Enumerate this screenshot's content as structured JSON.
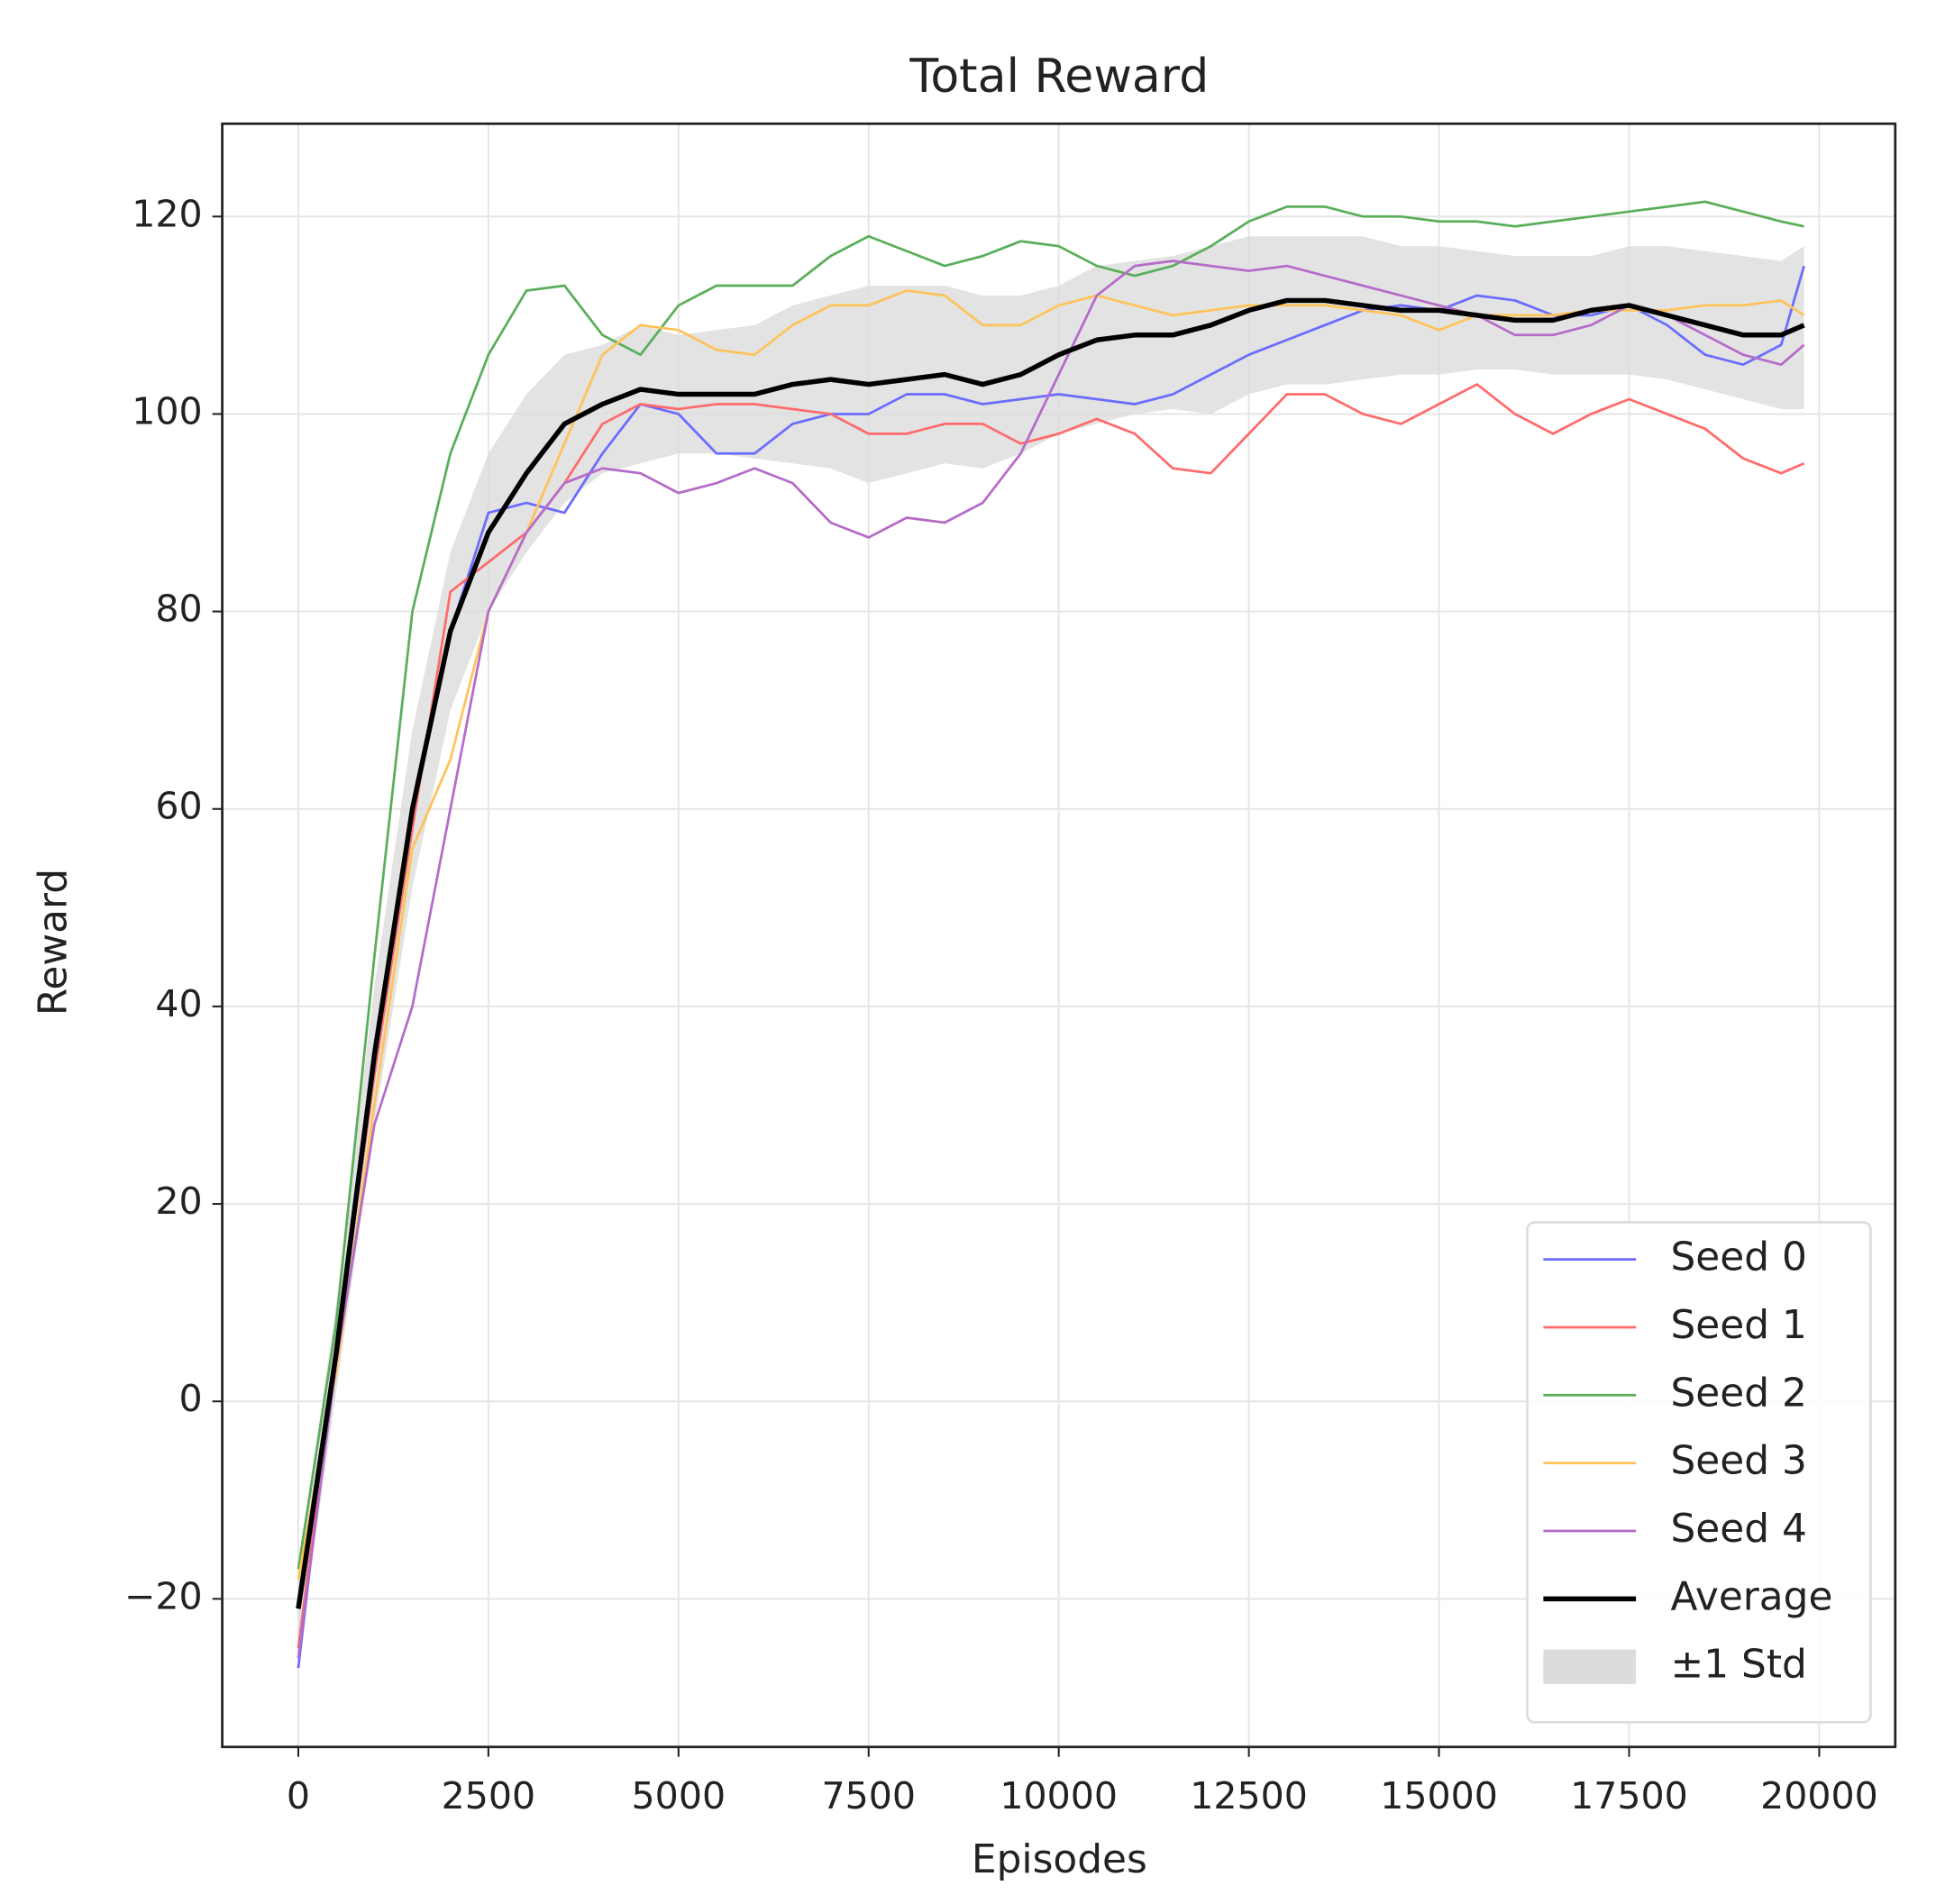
{
  "chart_data": {
    "type": "line",
    "title": "Total Reward",
    "x_label": "Episodes",
    "y_label": "Reward",
    "x": [
      0,
      500,
      1000,
      1500,
      2000,
      2500,
      3000,
      3500,
      4000,
      4500,
      5000,
      5500,
      6000,
      6500,
      7000,
      7500,
      8000,
      8500,
      9000,
      9500,
      10000,
      10500,
      11000,
      11500,
      12000,
      12500,
      13000,
      13500,
      14000,
      14500,
      15000,
      15500,
      16000,
      16500,
      17000,
      17500,
      18000,
      18500,
      19000,
      19500,
      19800
    ],
    "series": [
      {
        "name": "Seed 0",
        "color": "#6b6bff",
        "width": 2,
        "values": [
          -27,
          6,
          36,
          60,
          78,
          90,
          91,
          90,
          96,
          101,
          100,
          96,
          96,
          99,
          100,
          100,
          102,
          102,
          101,
          101.5,
          102,
          101.5,
          101,
          102,
          104,
          106,
          107.5,
          109,
          110.5,
          111,
          110.5,
          112,
          111.5,
          110,
          110,
          111,
          109,
          106,
          105,
          107,
          115
        ]
      },
      {
        "name": "Seed 1",
        "color": "#ff6b6b",
        "width": 2,
        "values": [
          -25,
          5,
          33,
          58,
          82,
          85,
          88,
          93,
          99,
          101,
          100.5,
          101,
          101,
          100.5,
          100,
          98,
          98,
          99,
          99,
          97,
          98,
          99.5,
          98,
          94.5,
          94,
          98,
          102,
          102,
          100,
          99,
          101,
          103,
          100,
          98,
          100,
          101.5,
          100,
          98.5,
          95.5,
          94,
          95
        ]
      },
      {
        "name": "Seed 2",
        "color": "#5aae5a",
        "width": 2,
        "values": [
          -17,
          8,
          45,
          80,
          96,
          106,
          112.5,
          113,
          108,
          106,
          111,
          113,
          113,
          113,
          116,
          118,
          116.5,
          115,
          116,
          117.5,
          117,
          115,
          114,
          115,
          117,
          119.5,
          121,
          121,
          120,
          120,
          119.5,
          119.5,
          119,
          119.5,
          120,
          120.5,
          121,
          121.5,
          120.5,
          119.5,
          119
        ]
      },
      {
        "name": "Seed 3",
        "color": "#ffc35a",
        "width": 2,
        "values": [
          -18,
          3,
          30,
          56,
          65,
          80,
          88,
          97,
          106,
          109,
          108.5,
          106.5,
          106,
          109,
          111,
          111,
          112.5,
          112,
          109,
          109,
          111,
          112,
          111,
          110,
          110.5,
          111,
          111,
          111,
          110.5,
          110,
          108.5,
          110,
          110,
          110,
          110.5,
          110.5,
          110.5,
          111,
          111,
          111.5,
          110
        ]
      },
      {
        "name": "Seed 4",
        "color": "#b56bc8",
        "width": 2,
        "values": [
          -26,
          4,
          28,
          40,
          60,
          80,
          88,
          93,
          94.5,
          94,
          92,
          93,
          94.5,
          93,
          89,
          87.5,
          89.5,
          89,
          91,
          96,
          104,
          112,
          115,
          115.5,
          115,
          114.5,
          115,
          114,
          113,
          112,
          111,
          110,
          108,
          108,
          109,
          111,
          110,
          108,
          106,
          105,
          107
        ]
      },
      {
        "name": "Average",
        "color": "#000000",
        "width": 4,
        "values": [
          -21,
          5,
          35,
          60,
          78,
          88,
          94,
          99,
          101,
          102.5,
          102,
          102,
          102,
          103,
          103.5,
          103,
          103.5,
          104,
          103,
          104,
          106,
          107.5,
          108,
          108,
          109,
          110.5,
          111.5,
          111.5,
          111,
          110.5,
          110.5,
          110,
          109.5,
          109.5,
          110.5,
          111,
          110,
          109,
          108,
          108,
          109
        ]
      }
    ],
    "band": {
      "name": "±1 Std",
      "color": "#dcdcdc",
      "lower": [
        -26,
        1,
        28,
        52,
        70,
        80,
        86,
        91,
        94,
        95,
        96,
        96,
        95.5,
        95,
        94.5,
        93,
        94,
        95,
        94.5,
        96,
        98,
        99,
        100,
        100.5,
        100,
        102,
        103,
        103,
        103.5,
        104,
        104,
        104.5,
        104.5,
        104,
        104,
        104,
        103.5,
        102.5,
        101.5,
        100.5,
        100.5
      ],
      "upper": [
        -17,
        10,
        42,
        68,
        86,
        96,
        102,
        106,
        107,
        109,
        108,
        108.5,
        109,
        111,
        112,
        113,
        113,
        113,
        112,
        112,
        113,
        115,
        115.5,
        116,
        117,
        118,
        118,
        118,
        118,
        117,
        117,
        116.5,
        116,
        116,
        116,
        117,
        117,
        116.5,
        116,
        115.5,
        117
      ]
    },
    "xlim": [
      -1000,
      21000
    ],
    "ylim": [
      -35,
      129.4
    ],
    "xticks": [
      0,
      2500,
      5000,
      7500,
      10000,
      12500,
      15000,
      17500,
      20000
    ],
    "yticks": [
      {
        "value": -20,
        "label": "−20"
      },
      0,
      20,
      40,
      60,
      80,
      100,
      120
    ],
    "grid": true,
    "legend": "lower right"
  }
}
